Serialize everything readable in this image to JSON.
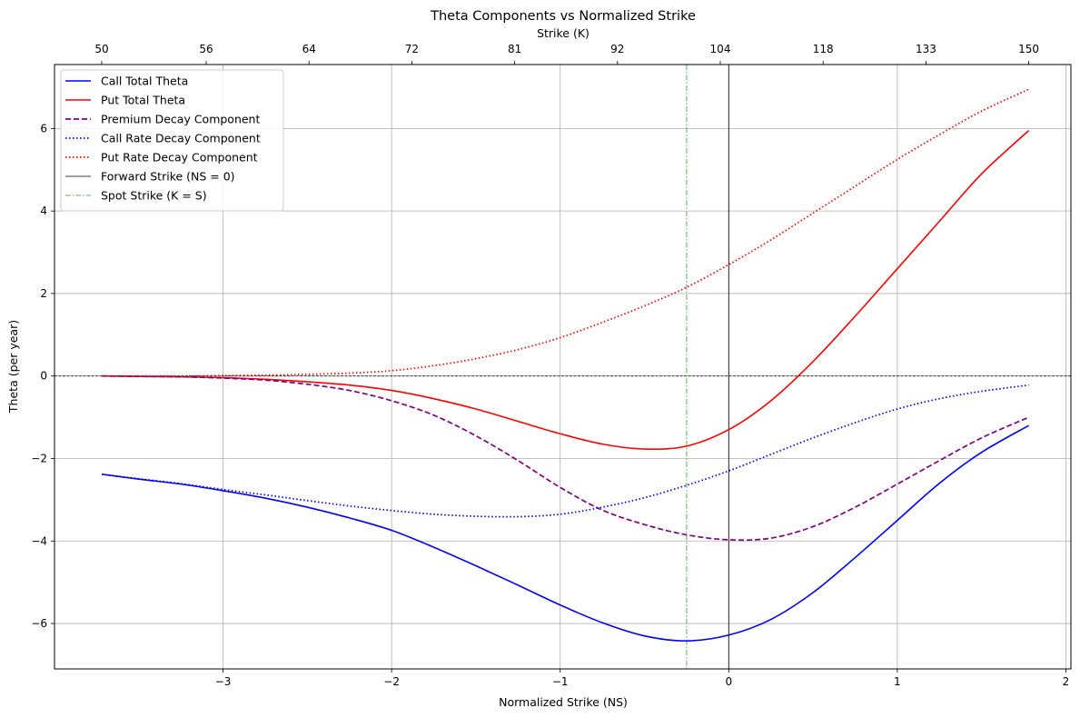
{
  "chart_data": {
    "type": "line",
    "title": "Theta Components vs Normalized Strike",
    "xlabel": "Normalized Strike (NS)",
    "ylabel": "Theta (per year)",
    "x2label": "Strike (K)",
    "xlim": [
      -4.0,
      2.03
    ],
    "ylim": [
      -7.1,
      7.55
    ],
    "grid": true,
    "legend_position": "top-left",
    "x_ticks": [
      -3,
      -2,
      -1,
      0,
      1,
      2
    ],
    "x_tick_labels": [
      "−3",
      "−2",
      "−1",
      "0",
      "1",
      "2"
    ],
    "y_ticks": [
      -6,
      -4,
      -2,
      0,
      2,
      4,
      6
    ],
    "y_tick_labels": [
      "−6",
      "−4",
      "−2",
      "0",
      "2",
      "4",
      "6"
    ],
    "top_ticks": [
      {
        "ns": -3.72,
        "label": "50"
      },
      {
        "ns": -3.1,
        "label": "56"
      },
      {
        "ns": -2.49,
        "label": "64"
      },
      {
        "ns": -1.88,
        "label": "72"
      },
      {
        "ns": -1.27,
        "label": "81"
      },
      {
        "ns": -0.66,
        "label": "92"
      },
      {
        "ns": -0.05,
        "label": "104"
      },
      {
        "ns": 0.56,
        "label": "118"
      },
      {
        "ns": 1.17,
        "label": "133"
      },
      {
        "ns": 1.78,
        "label": "150"
      }
    ],
    "vlines": [
      {
        "name": "Forward Strike (NS = 0)",
        "x": 0,
        "color": "#000000",
        "style": "solid"
      },
      {
        "name": "Spot Strike (K = S)",
        "x": -0.25,
        "color": "#2ca02c",
        "style": "dashdot"
      }
    ],
    "hline": {
      "y": 0,
      "color": "#000000",
      "style": "dashed"
    },
    "series": [
      {
        "name": "Call Total Theta",
        "color": "#0000ff",
        "style": "solid",
        "x": [
          -3.72,
          -3.5,
          -3.25,
          -3.0,
          -2.75,
          -2.5,
          -2.25,
          -2.0,
          -1.75,
          -1.5,
          -1.25,
          -1.0,
          -0.75,
          -0.5,
          -0.25,
          0.0,
          0.25,
          0.5,
          0.75,
          1.0,
          1.25,
          1.5,
          1.78
        ],
        "y": [
          -2.38,
          -2.5,
          -2.62,
          -2.78,
          -2.96,
          -3.18,
          -3.44,
          -3.74,
          -4.15,
          -4.6,
          -5.07,
          -5.55,
          -5.98,
          -6.3,
          -6.42,
          -6.28,
          -5.9,
          -5.25,
          -4.4,
          -3.5,
          -2.6,
          -1.85,
          -1.2
        ]
      },
      {
        "name": "Put Total Theta",
        "color": "#ff0000",
        "style": "solid",
        "x": [
          -3.72,
          -3.5,
          -3.25,
          -3.0,
          -2.75,
          -2.5,
          -2.25,
          -2.0,
          -1.75,
          -1.5,
          -1.25,
          -1.0,
          -0.75,
          -0.5,
          -0.25,
          0.0,
          0.25,
          0.5,
          0.75,
          1.0,
          1.25,
          1.5,
          1.78
        ],
        "y": [
          0.0,
          -0.01,
          -0.02,
          -0.04,
          -0.08,
          -0.14,
          -0.22,
          -0.35,
          -0.55,
          -0.8,
          -1.1,
          -1.4,
          -1.65,
          -1.77,
          -1.7,
          -1.3,
          -0.6,
          0.35,
          1.45,
          2.6,
          3.75,
          4.9,
          5.95
        ]
      },
      {
        "name": "Premium Decay Component",
        "color": "#800080",
        "style": "dashed",
        "x": [
          -3.72,
          -3.5,
          -3.25,
          -3.0,
          -2.75,
          -2.5,
          -2.25,
          -2.0,
          -1.75,
          -1.5,
          -1.25,
          -1.0,
          -0.75,
          -0.5,
          -0.25,
          0.0,
          0.25,
          0.5,
          0.75,
          1.0,
          1.25,
          1.5,
          1.78
        ],
        "y": [
          0.0,
          -0.01,
          -0.02,
          -0.05,
          -0.1,
          -0.2,
          -0.35,
          -0.6,
          -0.95,
          -1.45,
          -2.05,
          -2.7,
          -3.25,
          -3.6,
          -3.85,
          -3.97,
          -3.93,
          -3.65,
          -3.18,
          -2.62,
          -2.05,
          -1.5,
          -1.0
        ]
      },
      {
        "name": "Call Rate Decay Component",
        "color": "#0000ff",
        "style": "dotted",
        "x": [
          -3.72,
          -3.5,
          -3.25,
          -3.0,
          -2.75,
          -2.5,
          -2.25,
          -2.0,
          -1.75,
          -1.5,
          -1.25,
          -1.0,
          -0.75,
          -0.5,
          -0.25,
          0.0,
          0.25,
          0.5,
          0.75,
          1.0,
          1.25,
          1.5,
          1.78
        ],
        "y": [
          -2.38,
          -2.49,
          -2.61,
          -2.75,
          -2.88,
          -3.02,
          -3.15,
          -3.26,
          -3.35,
          -3.4,
          -3.41,
          -3.35,
          -3.18,
          -2.95,
          -2.65,
          -2.3,
          -1.9,
          -1.5,
          -1.13,
          -0.8,
          -0.55,
          -0.37,
          -0.22
        ]
      },
      {
        "name": "Put Rate Decay Component",
        "color": "#ff0000",
        "style": "dotted",
        "x": [
          -3.72,
          -3.5,
          -3.25,
          -3.0,
          -2.75,
          -2.5,
          -2.25,
          -2.0,
          -1.75,
          -1.5,
          -1.25,
          -1.0,
          -0.75,
          -0.5,
          -0.25,
          0.0,
          0.25,
          0.5,
          0.75,
          1.0,
          1.25,
          1.5,
          1.78
        ],
        "y": [
          0.0,
          0.0,
          0.0,
          0.01,
          0.02,
          0.04,
          0.07,
          0.13,
          0.25,
          0.42,
          0.64,
          0.93,
          1.3,
          1.7,
          2.15,
          2.7,
          3.3,
          3.95,
          4.6,
          5.25,
          5.85,
          6.42,
          6.95
        ]
      }
    ]
  }
}
